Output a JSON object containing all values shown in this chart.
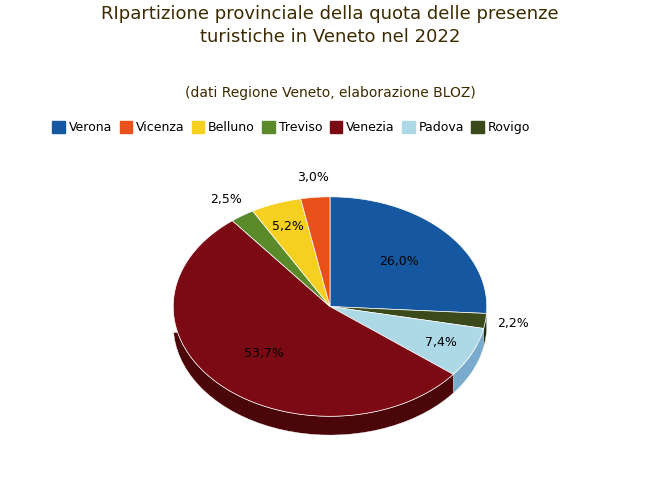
{
  "title": "RIpartizione provinciale della quota delle presenze\nturistiche in Veneto nel 2022",
  "subtitle": "(dati Regione Veneto, elaborazione BLOZ)",
  "labels": [
    "Verona",
    "Vicenza",
    "Belluno",
    "Treviso",
    "Venezia",
    "Padova",
    "Rovigo"
  ],
  "values": [
    26.0,
    3.0,
    5.2,
    2.5,
    53.7,
    7.4,
    2.2
  ],
  "colors": [
    "#1557a0",
    "#e8511a",
    "#f5d020",
    "#5a8a2a",
    "#7b0a14",
    "#add8e6",
    "#3b4a1a"
  ],
  "dark_colors": [
    "#0e3d70",
    "#b33d13",
    "#c4a800",
    "#3d5e1c",
    "#4a0609",
    "#7aabcc",
    "#222e0f"
  ],
  "pie_order_values": [
    26.0,
    2.2,
    7.4,
    53.7,
    2.5,
    5.2,
    3.0
  ],
  "pie_order_colors": [
    "#1557a0",
    "#3b4a1a",
    "#add8e6",
    "#7b0a14",
    "#5a8a2a",
    "#f5d020",
    "#e8511a"
  ],
  "pie_order_dark_colors": [
    "#0e3d70",
    "#222e0f",
    "#7aabcc",
    "#4a0609",
    "#3d5e1c",
    "#c4a800",
    "#b33d13"
  ],
  "pie_order_labels": [
    "Verona",
    "Rovigo",
    "Padova",
    "Venezia",
    "Treviso",
    "Belluno",
    "Vicenza"
  ],
  "pie_order_pct": [
    "26,0%",
    "2,2%",
    "7,4%",
    "53,7%",
    "2,5%",
    "5,2%",
    "3,0%"
  ],
  "startangle": 90,
  "background_color": "#ffffff",
  "title_fontsize": 13,
  "subtitle_fontsize": 10,
  "legend_fontsize": 9,
  "pct_fontsize": 9
}
